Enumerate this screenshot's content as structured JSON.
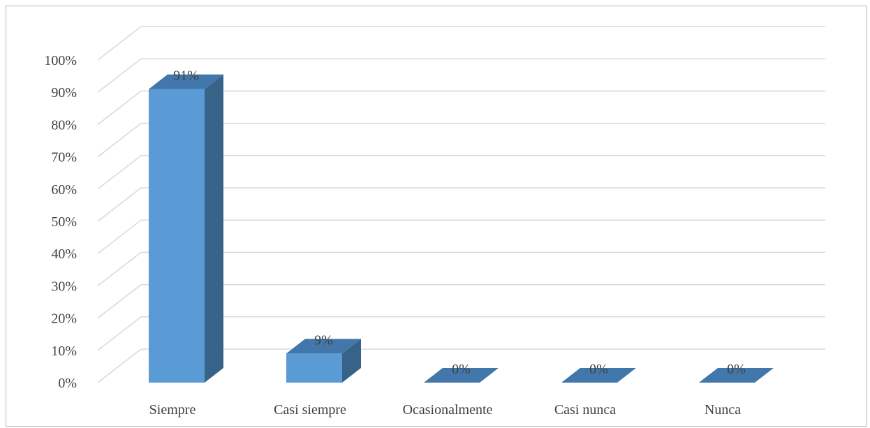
{
  "chart_data": {
    "type": "bar",
    "style": "3d-column",
    "categories": [
      "Siempre",
      "Casi siempre",
      "Ocasionalmente",
      "Casi nunca",
      "Nunca"
    ],
    "values": [
      91,
      9,
      0,
      0,
      0
    ],
    "data_labels": [
      "91%",
      "9%",
      "0%",
      "0%",
      "0%"
    ],
    "y_ticks": [
      "0%",
      "10%",
      "20%",
      "30%",
      "40%",
      "50%",
      "60%",
      "70%",
      "80%",
      "90%",
      "100%"
    ],
    "ylim": [
      0,
      100
    ],
    "grid": true,
    "legend": "none",
    "colors": {
      "bar_front": "#5b9bd5",
      "bar_side": "#386388",
      "bar_top": "#4177aa",
      "gridline": "#d9d9d9",
      "text": "#404040"
    }
  }
}
